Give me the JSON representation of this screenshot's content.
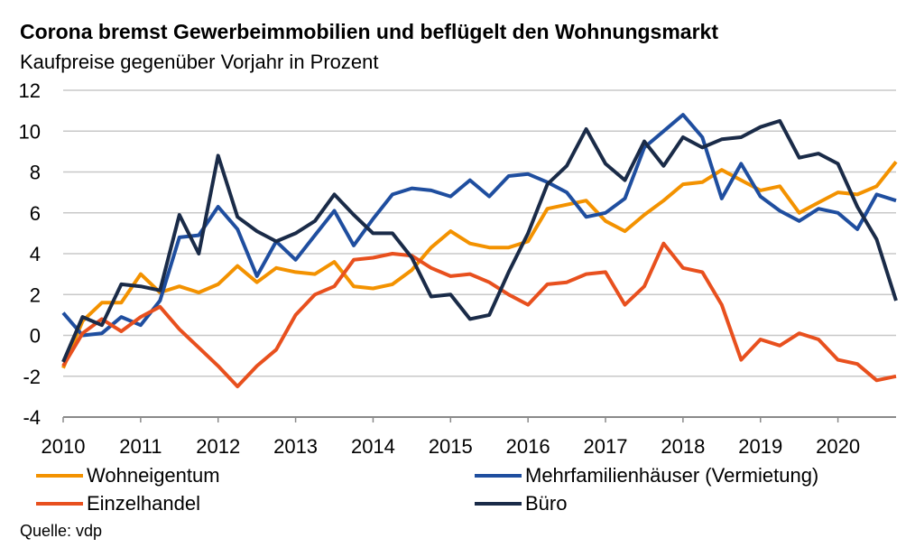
{
  "title": "Corona bremst Gewerbeimmobilien und beflügelt den Wohnungsmarkt",
  "subtitle": "Kaufpreise gegenüber Vorjahr in Prozent",
  "source": "Quelle: vdp",
  "chart_data": {
    "type": "line",
    "title": "Corona bremst Gewerbeimmobilien und beflügelt den Wohnungsmarkt",
    "subtitle": "Kaufpreise gegenüber Vorjahr in Prozent",
    "xlabel": "",
    "ylabel": "",
    "ylim": [
      -4,
      12
    ],
    "y_ticks": [
      -4,
      -2,
      0,
      2,
      4,
      6,
      8,
      10,
      12
    ],
    "x_range": [
      2010.0,
      2020.75
    ],
    "x_ticks": [
      2010,
      2011,
      2012,
      2013,
      2014,
      2015,
      2016,
      2017,
      2018,
      2019,
      2020
    ],
    "x_tick_labels": [
      "2010",
      "2011",
      "2012",
      "2013",
      "2014",
      "2015",
      "2016",
      "2017",
      "2018",
      "2019",
      "2020"
    ],
    "grid": "horizontal",
    "legend_position": "bottom",
    "x": [
      2010.0,
      2010.25,
      2010.5,
      2010.75,
      2011.0,
      2011.25,
      2011.5,
      2011.75,
      2012.0,
      2012.25,
      2012.5,
      2012.75,
      2013.0,
      2013.25,
      2013.5,
      2013.75,
      2014.0,
      2014.25,
      2014.5,
      2014.75,
      2015.0,
      2015.25,
      2015.5,
      2015.75,
      2016.0,
      2016.25,
      2016.5,
      2016.75,
      2017.0,
      2017.25,
      2017.5,
      2017.75,
      2018.0,
      2018.25,
      2018.5,
      2018.75,
      2019.0,
      2019.25,
      2019.5,
      2019.75,
      2020.0,
      2020.25,
      2020.5,
      2020.75
    ],
    "series": [
      {
        "name": "Wohneigentum",
        "color": "#f39200",
        "values": [
          -1.6,
          0.7,
          1.6,
          1.6,
          3.0,
          2.1,
          2.4,
          2.1,
          2.5,
          3.4,
          2.6,
          3.3,
          3.1,
          3.0,
          3.6,
          2.4,
          2.3,
          2.5,
          3.2,
          4.3,
          5.1,
          4.5,
          4.3,
          4.3,
          4.6,
          6.2,
          6.4,
          6.6,
          5.6,
          5.1,
          5.9,
          6.6,
          7.4,
          7.5,
          8.1,
          7.6,
          7.1,
          7.3,
          6.0,
          6.5,
          7.0,
          6.9,
          7.3,
          8.5
        ]
      },
      {
        "name": "Mehrfamilienhäuser (Vermietung)",
        "color": "#1f4e9f",
        "values": [
          1.1,
          0.0,
          0.1,
          0.9,
          0.5,
          1.7,
          4.8,
          4.9,
          6.3,
          5.2,
          2.9,
          4.6,
          3.7,
          4.9,
          6.1,
          4.4,
          5.7,
          6.9,
          7.2,
          7.1,
          6.8,
          7.6,
          6.8,
          7.8,
          7.9,
          7.5,
          7.0,
          5.8,
          6.0,
          6.7,
          9.2,
          10.0,
          10.8,
          9.7,
          6.7,
          8.4,
          6.8,
          6.1,
          5.6,
          6.2,
          6.0,
          5.2,
          6.9,
          6.6
        ]
      },
      {
        "name": "Einzelhandel",
        "color": "#e8501e",
        "values": [
          -1.5,
          0.1,
          0.8,
          0.2,
          0.9,
          1.4,
          0.3,
          -0.6,
          -1.5,
          -2.5,
          -1.5,
          -0.7,
          1.0,
          2.0,
          2.4,
          3.7,
          3.8,
          4.0,
          3.9,
          3.3,
          2.9,
          3.0,
          2.6,
          2.0,
          1.5,
          2.5,
          2.6,
          3.0,
          3.1,
          1.5,
          2.4,
          4.5,
          3.3,
          3.1,
          1.5,
          -1.2,
          -0.2,
          -0.5,
          0.1,
          -0.2,
          -1.2,
          -1.4,
          -2.2,
          -2.0
        ]
      },
      {
        "name": "Büro",
        "color": "#1a2b48",
        "values": [
          -1.3,
          0.9,
          0.5,
          2.5,
          2.4,
          2.2,
          5.9,
          4.0,
          8.8,
          5.8,
          5.1,
          4.6,
          5.0,
          5.6,
          6.9,
          5.9,
          5.0,
          5.0,
          3.8,
          1.9,
          2.0,
          0.8,
          1.0,
          3.1,
          5.0,
          7.4,
          8.3,
          10.1,
          8.4,
          7.6,
          9.5,
          8.3,
          9.7,
          9.2,
          9.6,
          9.7,
          10.2,
          10.5,
          8.7,
          8.9,
          8.4,
          6.3,
          4.7,
          1.7
        ]
      }
    ]
  }
}
